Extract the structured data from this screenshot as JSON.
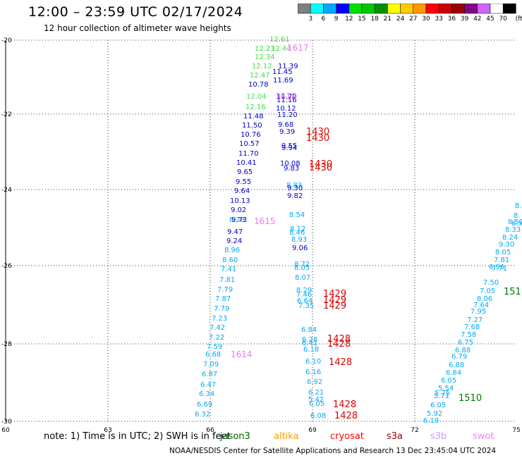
{
  "header": {
    "title": "12:00 – 23:59 UTC 02/17/2024",
    "subtitle": "12 hour collection of altimeter wave heights"
  },
  "color_scale": {
    "labels": [
      "3",
      "6",
      "9",
      "12",
      "15",
      "18",
      "21",
      "24",
      "27",
      "30",
      "33",
      "36",
      "39",
      "42",
      "45",
      "70",
      "(ft)"
    ],
    "colors": [
      "#808080",
      "#00ffff",
      "#00aaff",
      "#0000ff",
      "#00e000",
      "#00c800",
      "#009000",
      "#ffff00",
      "#ffcc00",
      "#ff9900",
      "#ff0000",
      "#cc0000",
      "#990000",
      "#880088",
      "#cc66ff",
      "#ffffff",
      "#000000"
    ]
  },
  "axes": {
    "lat_labels": [
      "-20",
      "-22",
      "-24",
      "-26",
      "-28",
      "-30"
    ],
    "lon_labels": [
      "60",
      "63",
      "66",
      "69",
      "72",
      "75"
    ]
  },
  "readings": {
    "track_a": [
      "12.61",
      "12.23",
      "12.44",
      "12.34",
      "12.12",
      "12.47",
      "10.78",
      "12.04",
      "12.16",
      "11.48",
      "11.50",
      "10.76",
      "10.57",
      "11.70",
      "10.41",
      "9.65",
      "9.55",
      "9.64",
      "10.13",
      "9.02",
      "8.78",
      "9.73",
      "9.47",
      "9.24",
      "8.96",
      "8.60",
      "7.41",
      "7.81",
      "7.79",
      "7.87",
      "7.79",
      "7.23",
      "7.42",
      "7.22",
      "7.59",
      "6.68",
      "7.09",
      "6.87",
      "6.47",
      "6.34",
      "6.69",
      "6.32"
    ],
    "track_b": [
      "11.39",
      "11.45",
      "11.69",
      "11.70",
      "11.16",
      "10.12",
      "11.20",
      "9.68",
      "9.39",
      "9.55",
      "9.94",
      "10.08",
      "9.83",
      "8.83",
      "9.30",
      "9.82",
      "8.54",
      "8.12",
      "8.46",
      "8.93",
      "9.06",
      "8.72",
      "8.05",
      "8.07",
      "8.29",
      "7.46",
      "6.64",
      "7.35",
      "6.84",
      "6.28",
      "6.41",
      "6.18",
      "6.10",
      "6.16",
      "6.92",
      "6.21",
      "5.42",
      "6.05",
      "6.08"
    ],
    "track_c": [
      "8.",
      "8.",
      "8.5",
      "8.52",
      "8.33",
      "8.24",
      "9.30",
      "8.05",
      "7.81",
      "7.71",
      "6.96",
      "7.50",
      "7.05",
      "8.06",
      "7.64",
      "7.95",
      "7.27",
      "7.68",
      "7.58",
      "6.75",
      "6.88",
      "6.79",
      "6.88",
      "6.84",
      "6.05",
      "5.54",
      "5.75",
      "5.71",
      "6.05",
      "5.92",
      "6.19"
    ]
  },
  "time_labels": {
    "t1617": "1617",
    "t1618": "1618",
    "t1430a": "1430",
    "t1430b": "1430",
    "t1430c": "1430",
    "t1430d": "1430",
    "t1615": "1615",
    "t1614": "1614",
    "t1429a": "1429",
    "t1429b": "1429",
    "t1429c": "1429",
    "t1428a": "1428",
    "t1428b": "1428",
    "t1428c": "1428",
    "t1428d": "1428",
    "t1428e": "1428",
    "t151": "151",
    "t1510": "1510"
  },
  "footer": {
    "note": "note: 1) Time is in UTC; 2) SWH is in feet",
    "satellites": [
      {
        "name": "jason3",
        "color": "#006600"
      },
      {
        "name": "altika",
        "color": "#ff9900"
      },
      {
        "name": "cryosat",
        "color": "#ff0000"
      },
      {
        "name": "s3a",
        "color": "#990000"
      },
      {
        "name": "s3b",
        "color": "#cc99ff"
      },
      {
        "name": "swot",
        "color": "#ee88ee"
      }
    ],
    "credit": "NOAA/NESDIS Center for Satellite Applications and Research     13 Dec 23:45:04 UTC 2024"
  }
}
